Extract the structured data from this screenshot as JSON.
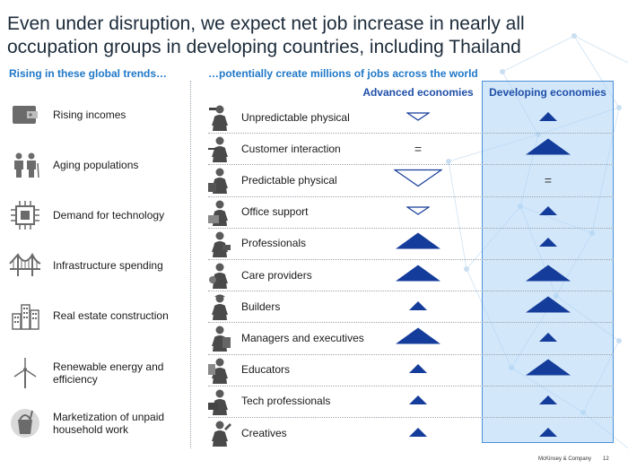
{
  "title": "Even under disruption, we expect net job increase in nearly all occupation groups in developing countries, including Thailand",
  "left_subtitle": "Rising in these global trends…",
  "right_subtitle": "…potentially create millions of jobs across the world",
  "columns": {
    "advanced": "Advanced economies",
    "developing": "Developing economies"
  },
  "colors": {
    "accent": "#1f78c8",
    "triangle_fill": "#143c9a",
    "highlight": "#add4f5"
  },
  "trends": [
    {
      "label": "Rising incomes",
      "icon": "wallet-icon"
    },
    {
      "label": "Aging populations",
      "icon": "elderly-couple-icon"
    },
    {
      "label": "Demand for technology",
      "icon": "microchip-icon"
    },
    {
      "label": "Infrastructure spending",
      "icon": "bridge-icon"
    },
    {
      "label": "Real estate construction",
      "icon": "buildings-icon"
    },
    {
      "label": "Renewable energy and efficiency",
      "icon": "wind-turbine-icon"
    },
    {
      "label": "Marketization of unpaid household work",
      "icon": "cleaning-bucket-icon"
    }
  ],
  "occupations": [
    {
      "label": "Unpredictable physical",
      "icon": "worker-icon",
      "advanced": "small-down",
      "developing": "small-up"
    },
    {
      "label": "Customer interaction",
      "icon": "waiter-icon",
      "advanced": "equal",
      "developing": "large-up"
    },
    {
      "label": "Predictable physical",
      "icon": "machine-operator-icon",
      "advanced": "large-down",
      "developing": "equal"
    },
    {
      "label": "Office support",
      "icon": "office-worker-icon",
      "advanced": "small-down",
      "developing": "small-up"
    },
    {
      "label": "Professionals",
      "icon": "professional-icon",
      "advanced": "large-up",
      "developing": "small-up"
    },
    {
      "label": "Care providers",
      "icon": "care-provider-icon",
      "advanced": "large-up",
      "developing": "large-up"
    },
    {
      "label": "Builders",
      "icon": "builder-icon",
      "advanced": "small-up",
      "developing": "large-up"
    },
    {
      "label": "Managers and executives",
      "icon": "manager-icon",
      "advanced": "large-up",
      "developing": "small-up"
    },
    {
      "label": "Educators",
      "icon": "educator-icon",
      "advanced": "small-up",
      "developing": "large-up"
    },
    {
      "label": "Tech professionals",
      "icon": "tech-worker-icon",
      "advanced": "small-up",
      "developing": "small-up"
    },
    {
      "label": "Creatives",
      "icon": "creative-icon",
      "advanced": "small-up",
      "developing": "small-up"
    }
  ],
  "equal_symbol": "=",
  "footer": "McKinsey & Company",
  "page_number": "12"
}
